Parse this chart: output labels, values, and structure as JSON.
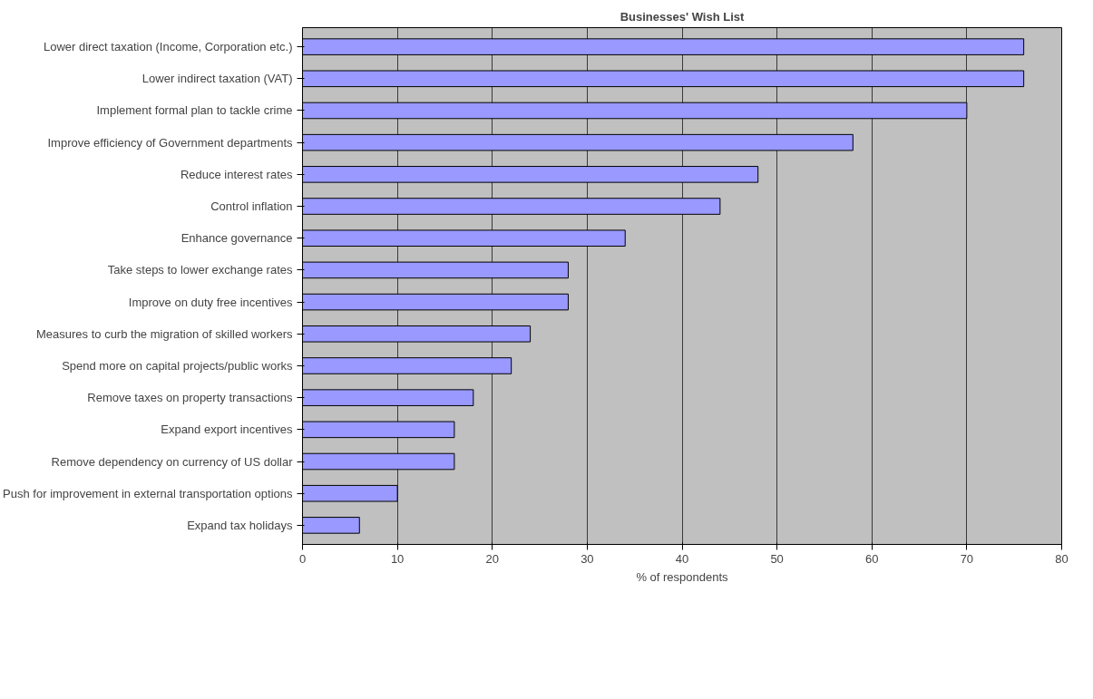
{
  "chart_data": {
    "type": "bar",
    "orientation": "horizontal",
    "title": "Businesses' Wish List",
    "xlabel": "% of respondents",
    "categories": [
      "Lower direct taxation (Income, Corporation etc.)",
      "Lower indirect taxation (VAT)",
      "Implement formal plan to tackle crime",
      "Improve efficiency of Government departments",
      "Reduce interest rates",
      "Control inflation",
      "Enhance governance",
      "Take steps to lower exchange rates",
      "Improve on duty free incentives",
      "Measures to curb the migration of skilled workers",
      "Spend more on capital projects/public works",
      "Remove taxes on property transactions",
      "Expand export incentives",
      "Remove dependency on currency of US dollar",
      "Push for improvement in external transportation options",
      "Expand tax holidays"
    ],
    "values": [
      76,
      76,
      70,
      58,
      48,
      44,
      34,
      28,
      28,
      24,
      22,
      18,
      16,
      16,
      10,
      6
    ],
    "color": "#9999ff",
    "xlim": [
      0,
      80
    ],
    "xticks": [
      0,
      10,
      20,
      30,
      40,
      50,
      60,
      70,
      80
    ],
    "grid": "x"
  }
}
